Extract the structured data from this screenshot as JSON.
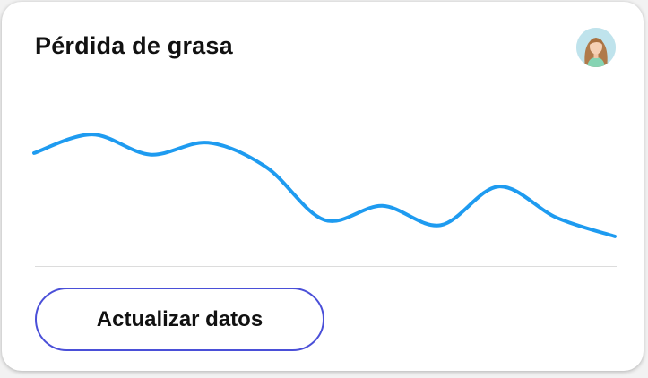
{
  "card": {
    "title": "Pérdida de grasa"
  },
  "avatar": {
    "icon": "user-avatar-photo"
  },
  "chart_data": {
    "type": "line",
    "title": "",
    "xlabel": "",
    "ylabel": "",
    "x": [
      0,
      1,
      2,
      3,
      4,
      5,
      6,
      7,
      8,
      9,
      10
    ],
    "series": [
      {
        "values": [
          0.17,
          0.42,
          0.15,
          0.31,
          -0.02,
          -0.73,
          -0.54,
          -0.8,
          -0.28,
          -0.7,
          -0.95
        ]
      }
    ],
    "ylim": [
      -1,
      1
    ],
    "grid": false,
    "line_color": "#1e9bf0"
  },
  "actions": {
    "update_label": "Actualizar datos"
  },
  "colors": {
    "accent": "#4a4fd8",
    "line": "#1e9bf0"
  }
}
